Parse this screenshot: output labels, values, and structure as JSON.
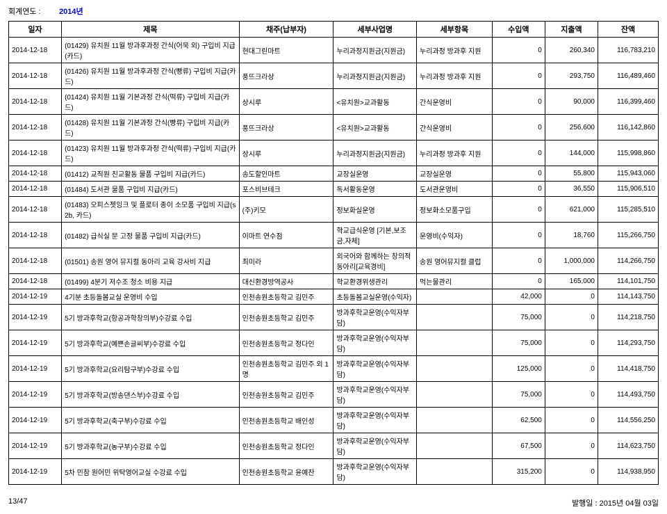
{
  "header": {
    "fiscal_label": "회계연도 :",
    "fiscal_value": "2014년"
  },
  "columns": [
    "일자",
    "제목",
    "채주(납부자)",
    "세부사업명",
    "세부항목",
    "수입액",
    "지출액",
    "잔액"
  ],
  "rows": [
    {
      "date": "2014-12-18",
      "title": "(01429) 유치원 11월 방과후과정 간식(어묵 외) 구입비 지급(카드)",
      "payer": "현대그린마트",
      "biz": "누리과정지원금(지원금)",
      "item": "누리과정 방과후 지원",
      "in": "0",
      "out": "260,340",
      "bal": "116,783,210"
    },
    {
      "date": "2014-12-18",
      "title": "(01426) 유치원 11월 방과후과정 간식(빵류) 구입비 지급(카드)",
      "payer": "풍뜨크라상",
      "biz": "누리과정지원금(지원금)",
      "item": "누리과정 방과후 지원",
      "in": "0",
      "out": "293,750",
      "bal": "116,489,460"
    },
    {
      "date": "2014-12-18",
      "title": "(01424) 유치원 11월 기본과정 간식(떡류) 구입비 지급(카드)",
      "payer": "상시루",
      "biz": "<유치원>교과활동",
      "item": "간식운영비",
      "in": "0",
      "out": "90,000",
      "bal": "116,399,460"
    },
    {
      "date": "2014-12-18",
      "title": "(01428) 유치원 11월 기본과정 간식(빵류) 구입비 지급(카드)",
      "payer": "풍뜨크라상",
      "biz": "<유치원>교과활동",
      "item": "간식운영비",
      "in": "0",
      "out": "256,600",
      "bal": "116,142,860"
    },
    {
      "date": "2014-12-18",
      "title": "(01423) 유치원 11월 방과후과정 간식(떡류) 구입비 지급(카드)",
      "payer": "상시루",
      "biz": "누리과정지원금(지원금)",
      "item": "누리과정 방과후 지원",
      "in": "0",
      "out": "144,000",
      "bal": "115,998,860"
    },
    {
      "date": "2014-12-18",
      "title": "(01412) 교직원 친교활동 물품 구입비 지급(카드)",
      "payer": "송도할인마트",
      "biz": "교장실운영",
      "item": "교장실운영",
      "in": "0",
      "out": "55,800",
      "bal": "115,943,060"
    },
    {
      "date": "2014-12-18",
      "title": "(01484) 도서관 물품 구입비 지급(카드)",
      "payer": "포스비브테크",
      "biz": "독서활동운영",
      "item": "도서관운영비",
      "in": "0",
      "out": "36,550",
      "bal": "115,906,510"
    },
    {
      "date": "2014-12-18",
      "title": "(01483) 오피스젯잉크 및 플로터 종이 소모품 구입비 지급(s2b, 카드)",
      "payer": "(주)키모",
      "biz": "정보화실운영",
      "item": "정보화소모품구입",
      "in": "0",
      "out": "621,000",
      "bal": "115,285,510"
    },
    {
      "date": "2014-12-18",
      "title": "(01482) 급식실 문 고정 물품 구입비 지급(카드)",
      "payer": "이마트 연수점",
      "biz": "학교급식운영 [기본,보조금,자체]",
      "item": "운영비(수익자)",
      "in": "0",
      "out": "18,760",
      "bal": "115,266,750"
    },
    {
      "date": "2014-12-18",
      "title": "(01501) 송원 영어 뮤지컬 동아리 교육 강사비 지급",
      "payer": "최미라",
      "biz": "외국어와 함께하는 창의적 동아리[교육경비]",
      "item": "송원 영어뮤지컬 클럽",
      "in": "0",
      "out": "1,000,000",
      "bal": "114,266,750"
    },
    {
      "date": "2014-12-18",
      "title": "(01499) 4분기 저수조 청소 비용 지급",
      "payer": "대신환경방역공사",
      "biz": "학교환경위생관리",
      "item": "먹는물관리",
      "in": "0",
      "out": "165,000",
      "bal": "114,101,750"
    },
    {
      "date": "2014-12-19",
      "title": "4기분  초등돌봄교실 운영비 수입",
      "payer": "인천송원초등학교 김민주",
      "biz": "초등돌봄교실운영(수익자)",
      "item": "",
      "in": "42,000",
      "out": "0",
      "bal": "114,143,750"
    },
    {
      "date": "2014-12-19",
      "title": "5기 방과후학교(항공과학창의부)수강료 수입",
      "payer": "인천송원초등학교 김민주",
      "biz": "방과후학교운영(수익자부담)",
      "item": "",
      "in": "75,000",
      "out": "0",
      "bal": "114,218,750"
    },
    {
      "date": "2014-12-19",
      "title": "5기 방과후학교(예쁜손글씨부)수강료 수입",
      "payer": "인천송원초등학교 정다인",
      "biz": "방과후학교운영(수익자부담)",
      "item": "",
      "in": "75,000",
      "out": "0",
      "bal": "114,293,750"
    },
    {
      "date": "2014-12-19",
      "title": "5기 방과후학교(요리탐구부)수강료 수입",
      "payer": "인천송원초등학교 김민주 외 1명",
      "biz": "방과후학교운영(수익자부담)",
      "item": "",
      "in": "125,000",
      "out": "0",
      "bal": "114,418,750"
    },
    {
      "date": "2014-12-19",
      "title": "5기 방과후학교(방송댄스부)수강료 수입",
      "payer": "인천송원초등학교 김민주",
      "biz": "방과후학교운영(수익자부담)",
      "item": "",
      "in": "75,000",
      "out": "0",
      "bal": "114,493,750"
    },
    {
      "date": "2014-12-19",
      "title": "5기 방과후학교(축구부)수강료 수입",
      "payer": "인천송원초등학교 배인성",
      "biz": "방과후학교운영(수익자부담)",
      "item": "",
      "in": "62,500",
      "out": "0",
      "bal": "114,556,250"
    },
    {
      "date": "2014-12-19",
      "title": "5기 방과후학교(농구부)수강료 수입",
      "payer": "인천송원초등학교 정다인",
      "biz": "방과후학교운영(수익자부담)",
      "item": "",
      "in": "67,500",
      "out": "0",
      "bal": "114,623,750"
    },
    {
      "date": "2014-12-19",
      "title": "5차 민참 원어민 위탁영어교실 수강료  수입",
      "payer": "인천송원초등학교 윤예찬",
      "biz": "방과후학교운영(수익자부담)",
      "item": "",
      "in": "315,200",
      "out": "0",
      "bal": "114,938,950"
    }
  ],
  "footer": {
    "page": "13/47",
    "issued_label": "발행일 :",
    "issued_value": "2015년 04월 03일"
  }
}
